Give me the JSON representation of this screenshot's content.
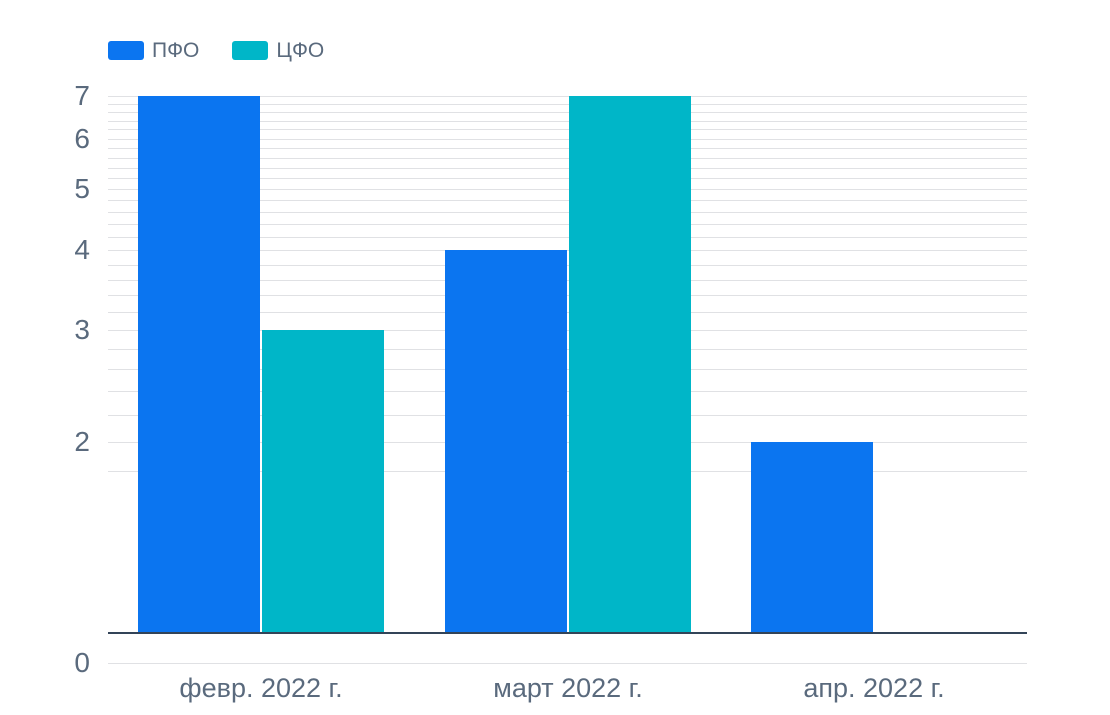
{
  "chart_data": {
    "type": "bar",
    "title": "",
    "categories": [
      "февр. 2022 г.",
      "март 2022 г.",
      "апр. 2022 г."
    ],
    "series": [
      {
        "name": "ПФО",
        "slug": "pfo",
        "color": "#0b75f0",
        "values": [
          7,
          4,
          2
        ]
      },
      {
        "name": "ЦФО",
        "slug": "cfo",
        "color": "#00b6c8",
        "values": [
          3,
          7,
          0
        ]
      }
    ],
    "y_axis": {
      "scale": "log",
      "tick_labels": [
        "7",
        "6",
        "5",
        "4",
        "3",
        "2",
        "0"
      ],
      "tick_values": [
        7,
        6,
        5,
        4,
        3,
        2,
        0
      ],
      "max": 7,
      "axis_line_value": 1,
      "minor_gridline_step": 0.2,
      "minor_gridline_range": [
        1.8,
        7.0
      ]
    },
    "x_axis": {
      "tick_labels": [
        "февр. 2022 г.",
        "март 2022 г.",
        "апр. 2022 г."
      ]
    },
    "legend": {
      "position": "top-left",
      "entries": [
        "ПФО",
        "ЦФО"
      ]
    },
    "grid": true
  },
  "colors": {
    "series_pfo": "#0b75f0",
    "series_cfo": "#00b6c8",
    "gridline": "#e0e1e4",
    "axis_line": "#334458",
    "label_text": "#5a6a7d",
    "background": "#ffffff"
  }
}
